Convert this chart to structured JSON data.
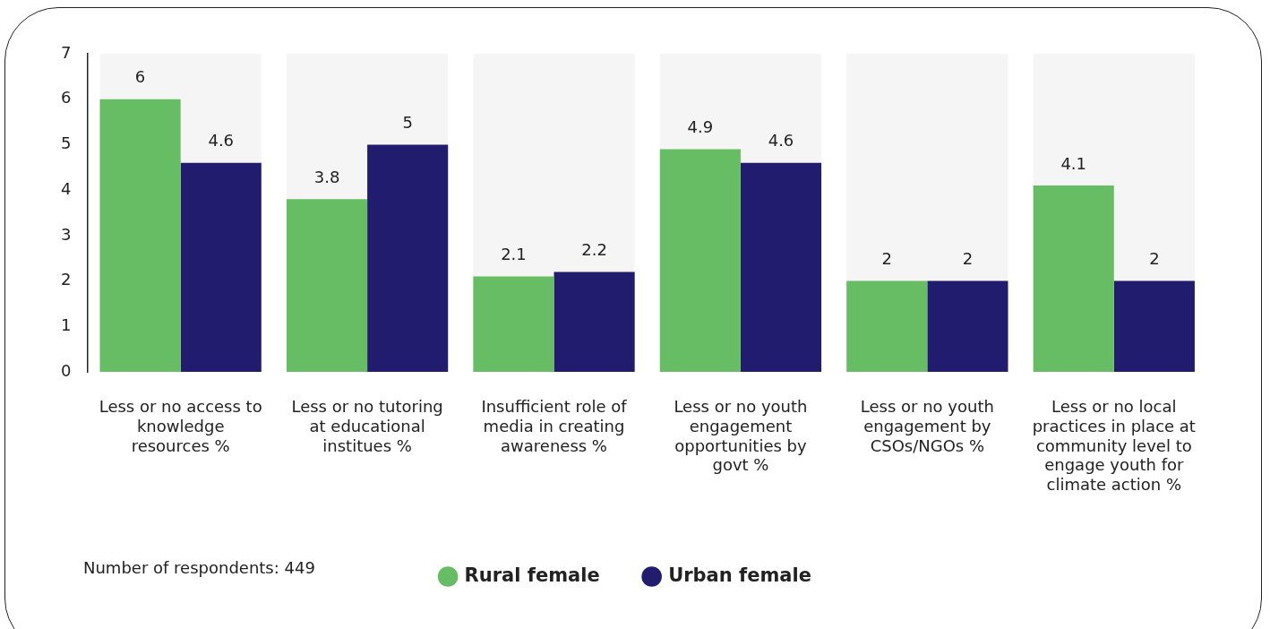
{
  "chart_data": {
    "type": "bar",
    "categories": [
      "Less or no access to knowledge resources %",
      "Less or no tutoring at educational institues %",
      "Insufficient role of media in creating awareness %",
      "Less or no youth engagement opportunities by govt %",
      "Less or no youth engagement by CSOs/NGOs %",
      "Less or no local practices in place at community level to engage youth for climate action %"
    ],
    "series": [
      {
        "name": "Rural female",
        "color": "#66bd63",
        "values": [
          6,
          3.8,
          2.1,
          4.9,
          2,
          4.1
        ]
      },
      {
        "name": "Urban female",
        "color": "#221c6e",
        "values": [
          4.6,
          5,
          2.2,
          4.6,
          2,
          2
        ]
      }
    ],
    "ylim": [
      0,
      7
    ],
    "yticks": [
      0,
      1,
      2,
      3,
      4,
      5,
      6,
      7
    ],
    "grid": false,
    "legend": "bottom",
    "data_labels": true,
    "bands": [
      {
        "axis": "x",
        "from": "Less or no access to knowledge resources %",
        "to": "Less or no access to knowledge resources %",
        "color": "#f5f5f5"
      },
      {
        "axis": "x",
        "from": "Less or no tutoring at educational institues %",
        "to": "Less or no tutoring at educational institues %",
        "color": "#f5f5f5"
      },
      {
        "axis": "x",
        "from": "Insufficient role of media in creating awareness %",
        "to": "Insufficient role of media in creating awareness %",
        "color": "#f5f5f5"
      },
      {
        "axis": "x",
        "from": "Less or no youth engagement opportunities by govt %",
        "to": "Less or no youth engagement opportunities by govt %",
        "color": "#f5f5f5"
      },
      {
        "axis": "x",
        "from": "Less or no youth engagement by CSOs/NGOs %",
        "to": "Less or no youth engagement by CSOs/NGOs %",
        "color": "#f5f5f5"
      },
      {
        "axis": "x",
        "from": "Less or no local practices in place at community level to engage youth for climate action %",
        "to": "Less or no local practices in place at community level to engage youth for climate action %",
        "color": "#f5f5f5"
      }
    ],
    "annotations": [
      "Number of respondents: 449"
    ]
  }
}
